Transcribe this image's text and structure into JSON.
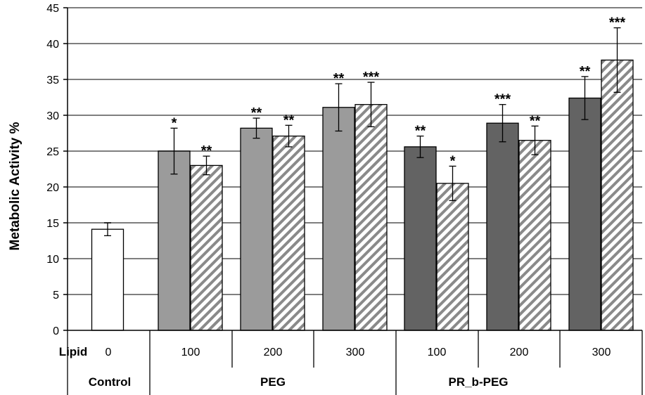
{
  "chart_data": {
    "type": "bar",
    "ylabel": "Metabolic Activity %",
    "ylim": [
      0,
      45
    ],
    "yticks": [
      0,
      5,
      10,
      15,
      20,
      25,
      30,
      35,
      40,
      45
    ],
    "grid": true,
    "row_label": "Lipid",
    "groups": [
      {
        "label": "Control",
        "lipids": [
          "0"
        ]
      },
      {
        "label": "PEG",
        "lipids": [
          "100",
          "200",
          "300"
        ]
      },
      {
        "label": "PR_b-PEG",
        "lipids": [
          "100",
          "200",
          "300"
        ]
      }
    ],
    "bars": [
      {
        "group": "Control",
        "lipid": "0",
        "value": 14.1,
        "error": 0.9,
        "sig": "",
        "fill": "white"
      },
      {
        "group": "PEG",
        "lipid": "100",
        "value": 25.0,
        "error": 3.2,
        "sig": "*",
        "fill": "solid"
      },
      {
        "group": "PEG",
        "lipid": "100",
        "value": 23.0,
        "error": 1.3,
        "sig": "**",
        "fill": "hatched"
      },
      {
        "group": "PEG",
        "lipid": "200",
        "value": 28.2,
        "error": 1.4,
        "sig": "**",
        "fill": "solid"
      },
      {
        "group": "PEG",
        "lipid": "200",
        "value": 27.1,
        "error": 1.5,
        "sig": "**",
        "fill": "hatched"
      },
      {
        "group": "PEG",
        "lipid": "300",
        "value": 31.1,
        "error": 3.3,
        "sig": "**",
        "fill": "solid"
      },
      {
        "group": "PEG",
        "lipid": "300",
        "value": 31.5,
        "error": 3.1,
        "sig": "***",
        "fill": "hatched"
      },
      {
        "group": "PR_b-PEG",
        "lipid": "100",
        "value": 25.6,
        "error": 1.5,
        "sig": "**",
        "fill": "solid"
      },
      {
        "group": "PR_b-PEG",
        "lipid": "100",
        "value": 20.5,
        "error": 2.4,
        "sig": "*",
        "fill": "hatched"
      },
      {
        "group": "PR_b-PEG",
        "lipid": "200",
        "value": 28.9,
        "error": 2.6,
        "sig": "***",
        "fill": "solid"
      },
      {
        "group": "PR_b-PEG",
        "lipid": "200",
        "value": 26.5,
        "error": 2.0,
        "sig": "**",
        "fill": "hatched"
      },
      {
        "group": "PR_b-PEG",
        "lipid": "300",
        "value": 32.4,
        "error": 3.0,
        "sig": "**",
        "fill": "solid"
      },
      {
        "group": "PR_b-PEG",
        "lipid": "300",
        "value": 37.7,
        "error": 4.5,
        "sig": "***",
        "fill": "hatched"
      }
    ],
    "colors": {
      "peg": "#9b9b9b",
      "prb_peg": "#636363",
      "control": "#ffffff",
      "hatch_line": "#7a7a7a",
      "grid": "#7f7f7f"
    }
  }
}
